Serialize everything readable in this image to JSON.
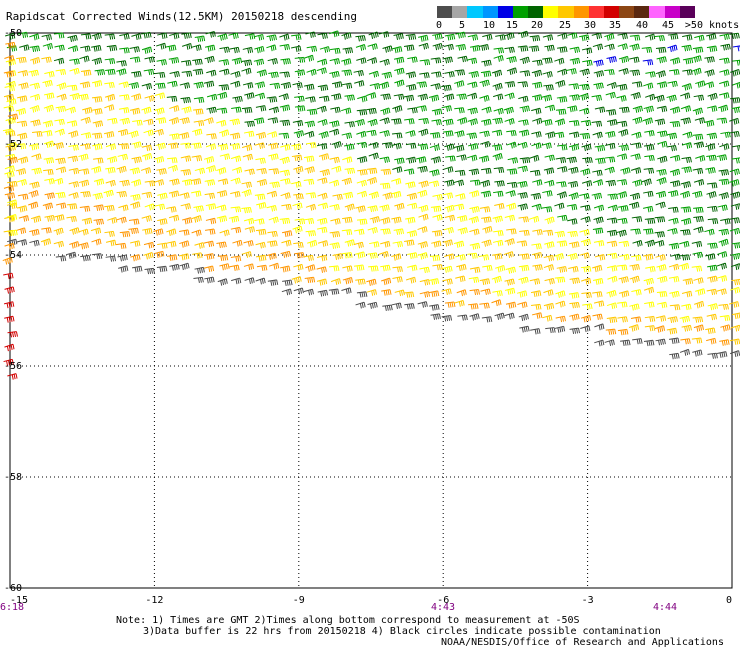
{
  "title": "Rapidscat Corrected Winds(12.5KM) 20150218 descending",
  "legend": {
    "colors": [
      "#4d4d4d",
      "#a6a6a6",
      "#00c8ff",
      "#0096ff",
      "#0000e6",
      "#00a000",
      "#006400",
      "#ffff00",
      "#ffc800",
      "#ff9600",
      "#ff3232",
      "#d20000",
      "#8c4614",
      "#5a2810",
      "#ff64ff",
      "#c800c8",
      "#5a005a"
    ],
    "labels": [
      "0",
      "5",
      "10",
      "15",
      "20",
      "25",
      "30",
      "35",
      "40",
      "45",
      ">50 knots"
    ],
    "speeds_knots": [
      0,
      5,
      10,
      15,
      20,
      25,
      30,
      35,
      40,
      45,
      50
    ]
  },
  "map": {
    "lon_range": [
      -15,
      0
    ],
    "lat_range": [
      -50,
      -60
    ],
    "y_ticks": [
      "-50",
      "-52",
      "-54",
      "-56",
      "-58",
      "-60"
    ],
    "x_ticks": [
      "-15",
      "-12",
      "-9",
      "-6",
      "-3",
      "0"
    ],
    "time_labels": [
      "6:18",
      "4:43",
      "4:44"
    ],
    "time_color": "#800080",
    "gridlines": "dotted"
  },
  "notes": {
    "line1": "Note: 1) Times are GMT 2)Times along bottom correspond to measurement at -50S",
    "line2": "3)Data buffer is 22 hrs from 20150218 4) Black circles indicate possible contamination",
    "credit": "NOAA/NESDIS/Office of Research and Applications"
  }
}
